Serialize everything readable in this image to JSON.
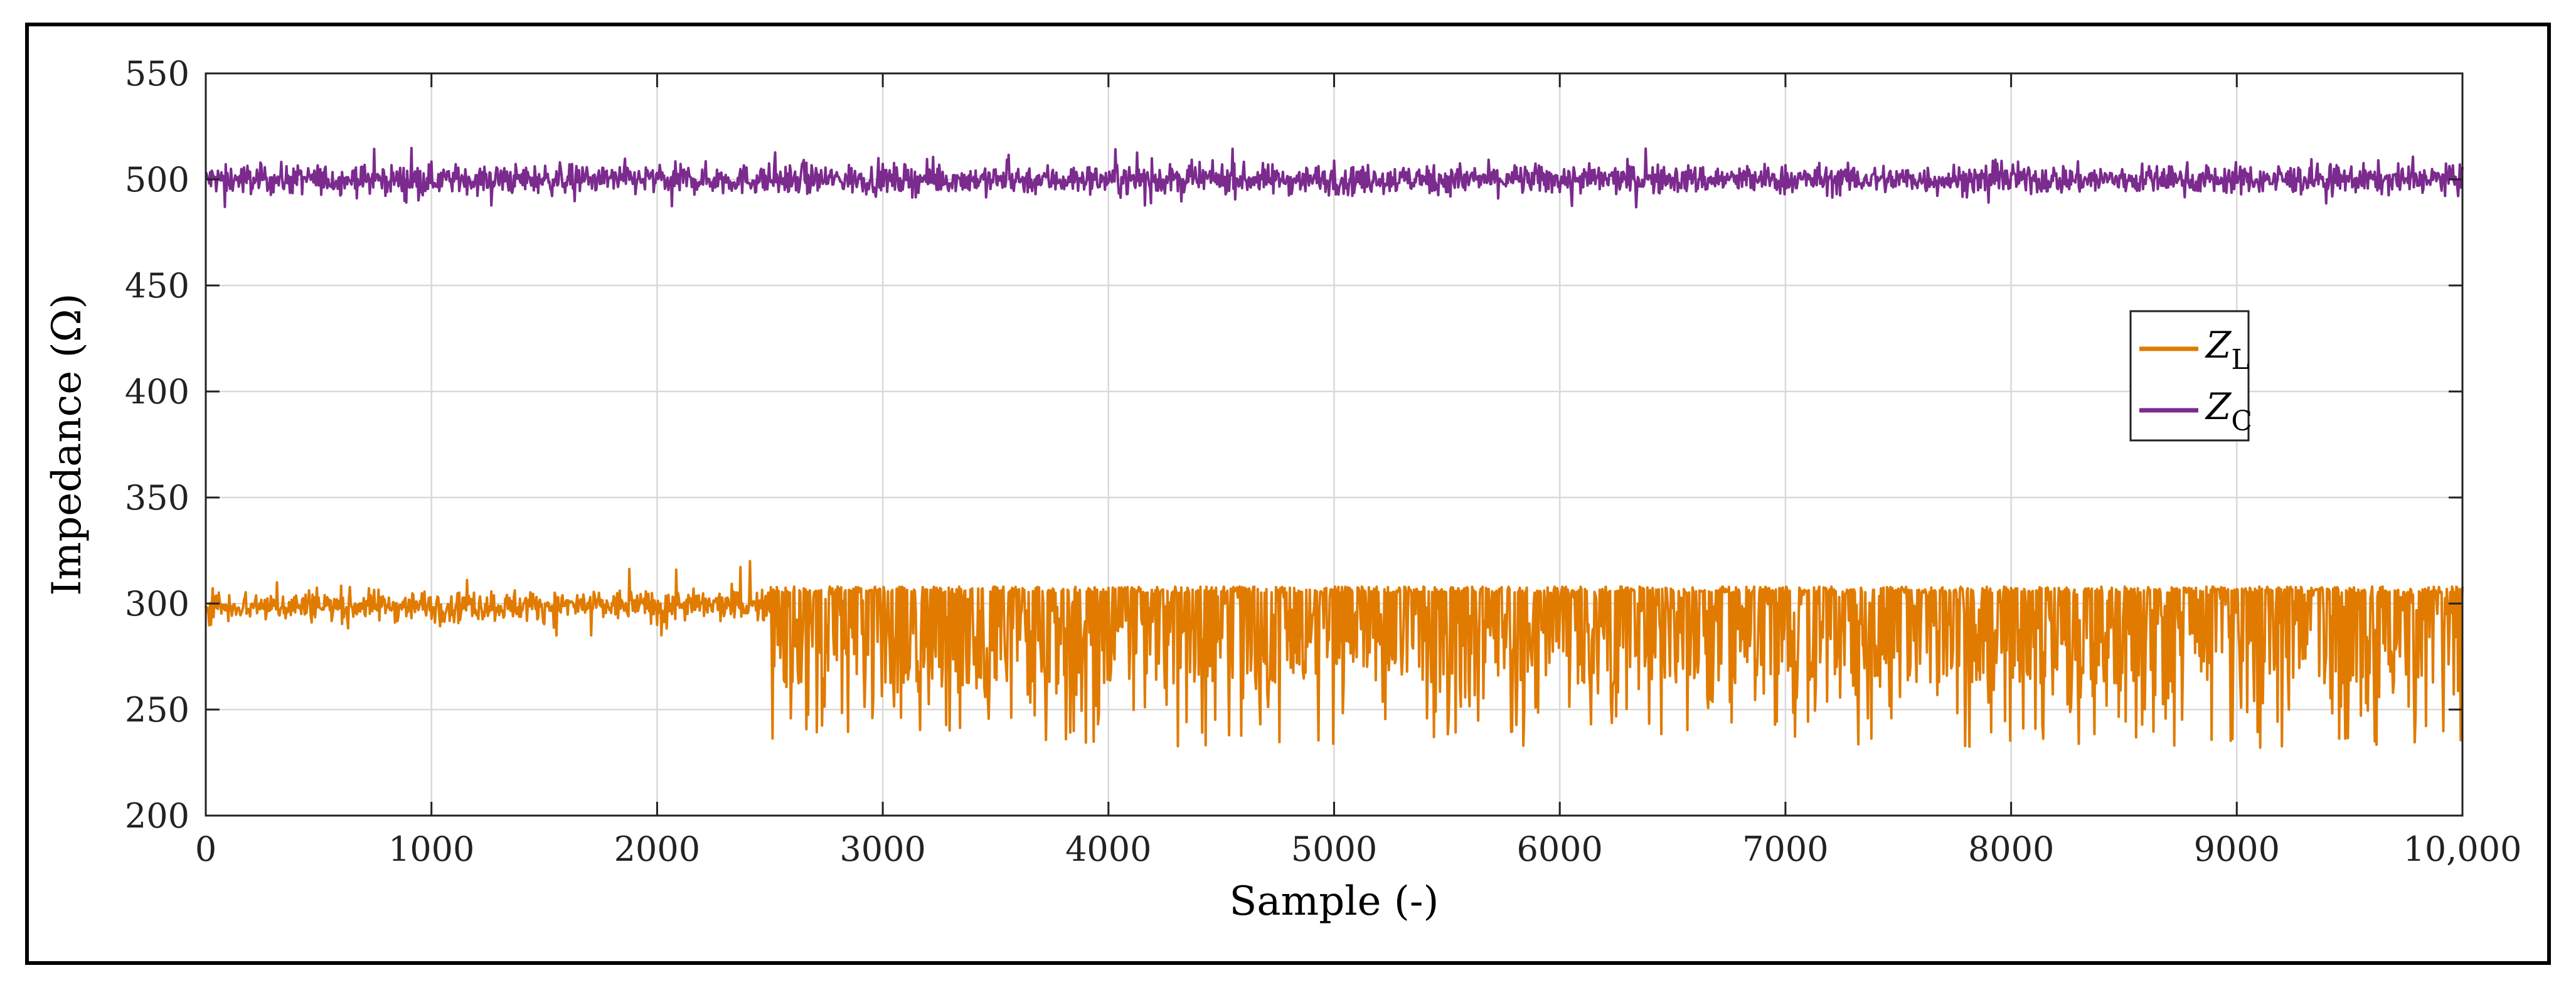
{
  "chart_data": {
    "type": "line",
    "title": "",
    "xlabel": "Sample (-)",
    "ylabel": "Impedance (Ω)",
    "xlim": [
      0,
      10000
    ],
    "ylim": [
      200,
      550
    ],
    "xticks": [
      0,
      1000,
      2000,
      3000,
      4000,
      5000,
      6000,
      7000,
      8000,
      9000,
      10000
    ],
    "xtick_labels": [
      "0",
      "1000",
      "2000",
      "3000",
      "4000",
      "5000",
      "6000",
      "7000",
      "8000",
      "9000",
      "10,000"
    ],
    "yticks": [
      200,
      250,
      300,
      350,
      400,
      450,
      500,
      550
    ],
    "grid": true,
    "legend_position": "right-middle",
    "series": [
      {
        "name": "ZL",
        "legend_main": "Z",
        "legend_sub": "L",
        "color": "#E07B00",
        "segments": [
          {
            "x_start": 0,
            "x_end": 2500,
            "mean": 299,
            "min": 285,
            "max": 320,
            "description_values": "narrow noise around 300"
          },
          {
            "x_start": 2500,
            "x_end": 10000,
            "mean": 290,
            "min": 228,
            "max": 309,
            "description_values": "upper bound ~308, frequent downward spikes to 230-260"
          }
        ]
      },
      {
        "name": "ZC",
        "legend_main": "Z",
        "legend_sub": "C",
        "color": "#7B2A8E",
        "segments": [
          {
            "x_start": 0,
            "x_end": 10000,
            "mean": 500,
            "min": 486,
            "max": 515,
            "description_values": "narrow noise around 500"
          }
        ]
      }
    ]
  }
}
